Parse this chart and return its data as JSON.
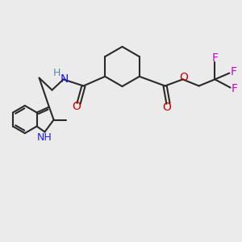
{
  "bg_color": "#ebebeb",
  "bond_color": "#2a2a2a",
  "bond_width": 1.5,
  "atom_colors": {
    "N": "#1a1aff",
    "O": "#cc0000",
    "F": "#cc00cc",
    "NH_teal": "#5588aa"
  },
  "fig_size": [
    3.0,
    3.0
  ],
  "dpi": 100
}
